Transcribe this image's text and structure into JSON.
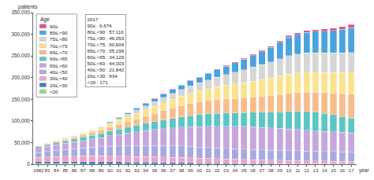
{
  "chart_data": {
    "type": "bar",
    "stacked": true,
    "grid": false,
    "legend": "upper left",
    "legend_title": "Age",
    "y_label": "patients",
    "x_label": "year",
    "categories": [
      "1982",
      "83",
      "84",
      "85",
      "86",
      "87",
      "88",
      "89",
      "90",
      "91",
      "92",
      "93",
      "94",
      "95",
      "96",
      "97",
      "98",
      "99",
      "00",
      "01",
      "02",
      "03",
      "04",
      "05",
      "06",
      "07",
      "08",
      "09",
      "10",
      "11",
      "12",
      "13",
      "14",
      "15",
      "16",
      "17"
    ],
    "ylim": [
      0,
      350000
    ],
    "yticks": [
      0,
      {
        "value": 50000,
        "label": "50,000"
      },
      {
        "value": 100000,
        "label": "100,000"
      },
      {
        "value": 150000,
        "label": "150,000"
      },
      {
        "value": 200000,
        "label": "200,000"
      },
      {
        "value": 250000,
        "label": "250,000"
      },
      {
        "value": 300000,
        "label": "300,000"
      },
      {
        "value": 350000,
        "label": "350,000"
      }
    ],
    "series": [
      {
        "name": "90≤",
        "color": "#e8508a",
        "values": [
          0,
          0,
          0,
          0,
          0,
          0,
          0,
          0,
          100,
          150,
          200,
          250,
          300,
          400,
          500,
          600,
          700,
          850,
          1000,
          1150,
          1300,
          1450,
          1600,
          1800,
          2000,
          2200,
          2450,
          2700,
          3000,
          3400,
          3800,
          4300,
          4800,
          5300,
          6000,
          6674
        ]
      },
      {
        "name": "80≤,<90",
        "color": "#4aa3df",
        "values": [
          100,
          150,
          250,
          400,
          550,
          750,
          1000,
          1400,
          2000,
          2700,
          3500,
          4400,
          5400,
          6500,
          7700,
          9000,
          10300,
          11600,
          13000,
          15000,
          17200,
          19500,
          22000,
          24500,
          27000,
          30000,
          33500,
          38000,
          43000,
          45500,
          47500,
          49000,
          50500,
          52000,
          54500,
          57116
        ]
      },
      {
        "name": "75≤,<80",
        "color": "#d6d6d6",
        "values": [
          300,
          400,
          550,
          750,
          1000,
          1300,
          1800,
          2600,
          4000,
          5200,
          6500,
          7900,
          9400,
          11000,
          12600,
          14200,
          15700,
          17000,
          18000,
          20000,
          22000,
          24500,
          27000,
          29500,
          32000,
          34500,
          37000,
          39500,
          42000,
          43500,
          44500,
          45000,
          45000,
          45000,
          45500,
          46053
        ]
      },
      {
        "name": "70≤,<75",
        "color": "#fbe38e",
        "values": [
          900,
          1200,
          1600,
          2100,
          2700,
          3400,
          4200,
          5200,
          7000,
          8700,
          10500,
          12300,
          14200,
          16200,
          18300,
          20300,
          22000,
          23600,
          25000,
          27000,
          29000,
          31000,
          33000,
          35000,
          37000,
          39000,
          41000,
          43000,
          45000,
          46000,
          46500,
          46500,
          46500,
          47000,
          48800,
          50604
        ]
      },
      {
        "name": "65≤,<70",
        "color": "#f8bd8c",
        "values": [
          2000,
          2400,
          2900,
          3500,
          4200,
          5000,
          6000,
          7200,
          9000,
          10800,
          12800,
          14800,
          16800,
          19000,
          21300,
          23500,
          25800,
          28000,
          30000,
          31500,
          32500,
          33000,
          33500,
          34000,
          35000,
          36500,
          38000,
          40000,
          42000,
          43000,
          44000,
          46000,
          48000,
          50000,
          52500,
          55199
        ]
      },
      {
        "name": "60≤,<65",
        "color": "#5cc6c4",
        "values": [
          3500,
          4200,
          5000,
          5800,
          6600,
          7500,
          8400,
          9500,
          11000,
          12500,
          14000,
          15500,
          17000,
          18700,
          20300,
          22000,
          24000,
          26000,
          28000,
          29000,
          30000,
          30500,
          31000,
          32000,
          33500,
          35000,
          36500,
          38000,
          40000,
          42000,
          43500,
          43000,
          41500,
          40000,
          37000,
          34129
        ]
      },
      {
        "name": "50≤,<60",
        "color": "#c6a6dd",
        "values": [
          10000,
          11500,
          13000,
          14500,
          16000,
          17500,
          19500,
          21500,
          24000,
          26500,
          29000,
          31500,
          34000,
          36500,
          39000,
          41500,
          43500,
          45500,
          47000,
          48500,
          50000,
          51000,
          52000,
          52500,
          52500,
          52000,
          51500,
          51000,
          50000,
          49000,
          48000,
          47000,
          46200,
          45500,
          44800,
          44003
        ]
      },
      {
        "name": "40≤,<50",
        "color": "#a9a9e2",
        "values": [
          11000,
          12500,
          14000,
          15500,
          17000,
          18500,
          19800,
          21000,
          22500,
          23500,
          24500,
          25200,
          25800,
          26200,
          26300,
          26300,
          26100,
          25800,
          25400,
          25000,
          24600,
          24200,
          23800,
          23500,
          23200,
          23000,
          22800,
          22700,
          22600,
          22500,
          22400,
          22300,
          22200,
          22100,
          22000,
          21842
        ]
      },
      {
        "name": "30≤,<40",
        "color": "#f2a0c6",
        "values": [
          10000,
          10800,
          11500,
          12000,
          12500,
          12800,
          13000,
          13100,
          13200,
          13200,
          13100,
          13000,
          12800,
          12600,
          12300,
          12000,
          11700,
          11400,
          11000,
          10600,
          10200,
          9800,
          9400,
          9000,
          8600,
          8200,
          7900,
          7600,
          7300,
          7000,
          6700,
          6400,
          6100,
          5900,
          5700,
          5500
        ]
      },
      {
        "name": "20≤,<30",
        "color": "#3a7fc1",
        "values": [
          5000,
          5200,
          5300,
          5400,
          5400,
          5400,
          5300,
          5200,
          5000,
          4800,
          4600,
          4400,
          4200,
          4000,
          3800,
          3600,
          3400,
          3200,
          3000,
          2800,
          2600,
          2400,
          2200,
          2000,
          1900,
          1700,
          1600,
          1500,
          1400,
          1300,
          1200,
          1100,
          1000,
          950,
          900,
          834
        ]
      },
      {
        "name": "<20",
        "color": "#a2d48c",
        "values": [
          1000,
          1000,
          1000,
          950,
          950,
          900,
          900,
          850,
          800,
          800,
          750,
          700,
          700,
          650,
          600,
          600,
          550,
          500,
          500,
          450,
          400,
          400,
          350,
          350,
          300,
          300,
          300,
          250,
          250,
          250,
          200,
          200,
          200,
          200,
          180,
          171
        ]
      }
    ],
    "annotations": [
      {
        "title": "2017",
        "lines": [
          "90≤ : 6,674",
          "80≤,<90 : 57,116",
          "75≤,<80 : 46,053",
          "70≤,<75 : 50,604",
          "65≤,<70 : 55,199",
          "60≤,<65 : 34,129",
          "50≤,<60 : 44,003",
          "40≤,<50 : 21,842",
          "20≤,<30 : 834",
          "<20 : 171"
        ]
      }
    ]
  }
}
